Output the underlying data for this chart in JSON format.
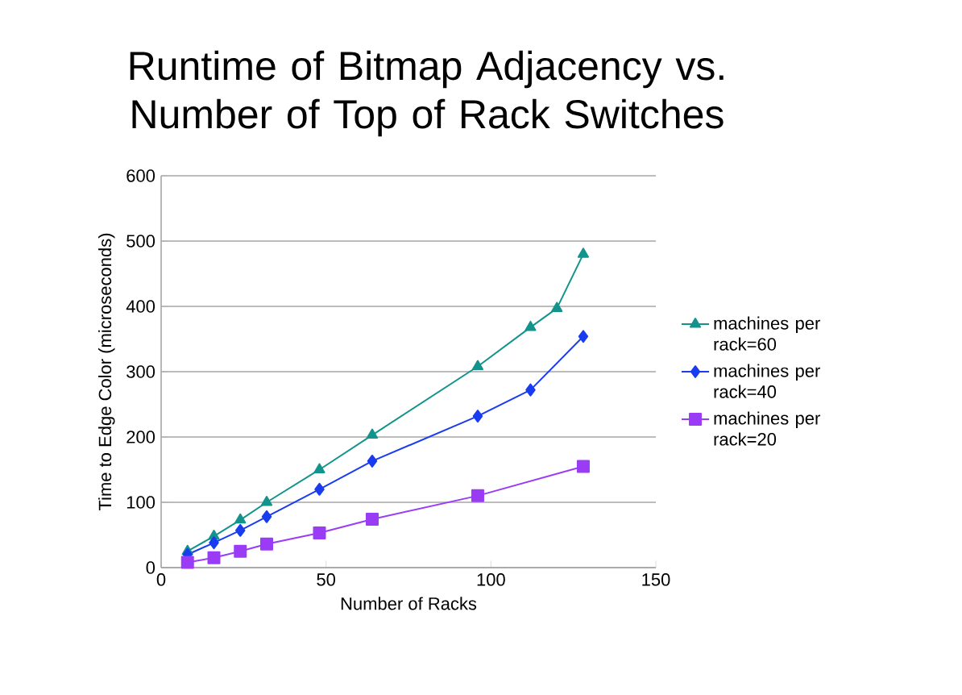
{
  "chart_data": {
    "type": "line",
    "title": "Runtime of Bitmap Adjacency vs. Number of Top of Rack Switches",
    "xlabel": "Number of Racks",
    "ylabel": "Time to Edge Color (microseconds)",
    "xlim": [
      0,
      150
    ],
    "xticks": [
      0,
      50,
      100,
      150
    ],
    "ylim": [
      0,
      600
    ],
    "yticks": [
      0,
      100,
      200,
      300,
      400,
      500,
      600
    ],
    "grid": "y",
    "legend": "right",
    "series": [
      {
        "name": "machines per rack=60",
        "color": "#12948c",
        "marker": "triangle",
        "x": [
          8,
          16,
          24,
          32,
          48,
          64,
          96,
          112,
          120,
          128
        ],
        "values": [
          25,
          48,
          73,
          100,
          150,
          203,
          308,
          368,
          397,
          480
        ]
      },
      {
        "name": "machines per rack=40",
        "color": "#1a3cf0",
        "marker": "diamond",
        "x": [
          8,
          16,
          24,
          32,
          48,
          64,
          96,
          112,
          128
        ],
        "values": [
          20,
          38,
          57,
          78,
          120,
          163,
          232,
          272,
          354
        ]
      },
      {
        "name": "machines per rack=20",
        "color": "#9a3cf5",
        "marker": "square",
        "x": [
          8,
          16,
          24,
          32,
          48,
          64,
          96,
          128
        ],
        "values": [
          8,
          15,
          25,
          36,
          53,
          74,
          110,
          155
        ]
      }
    ]
  }
}
